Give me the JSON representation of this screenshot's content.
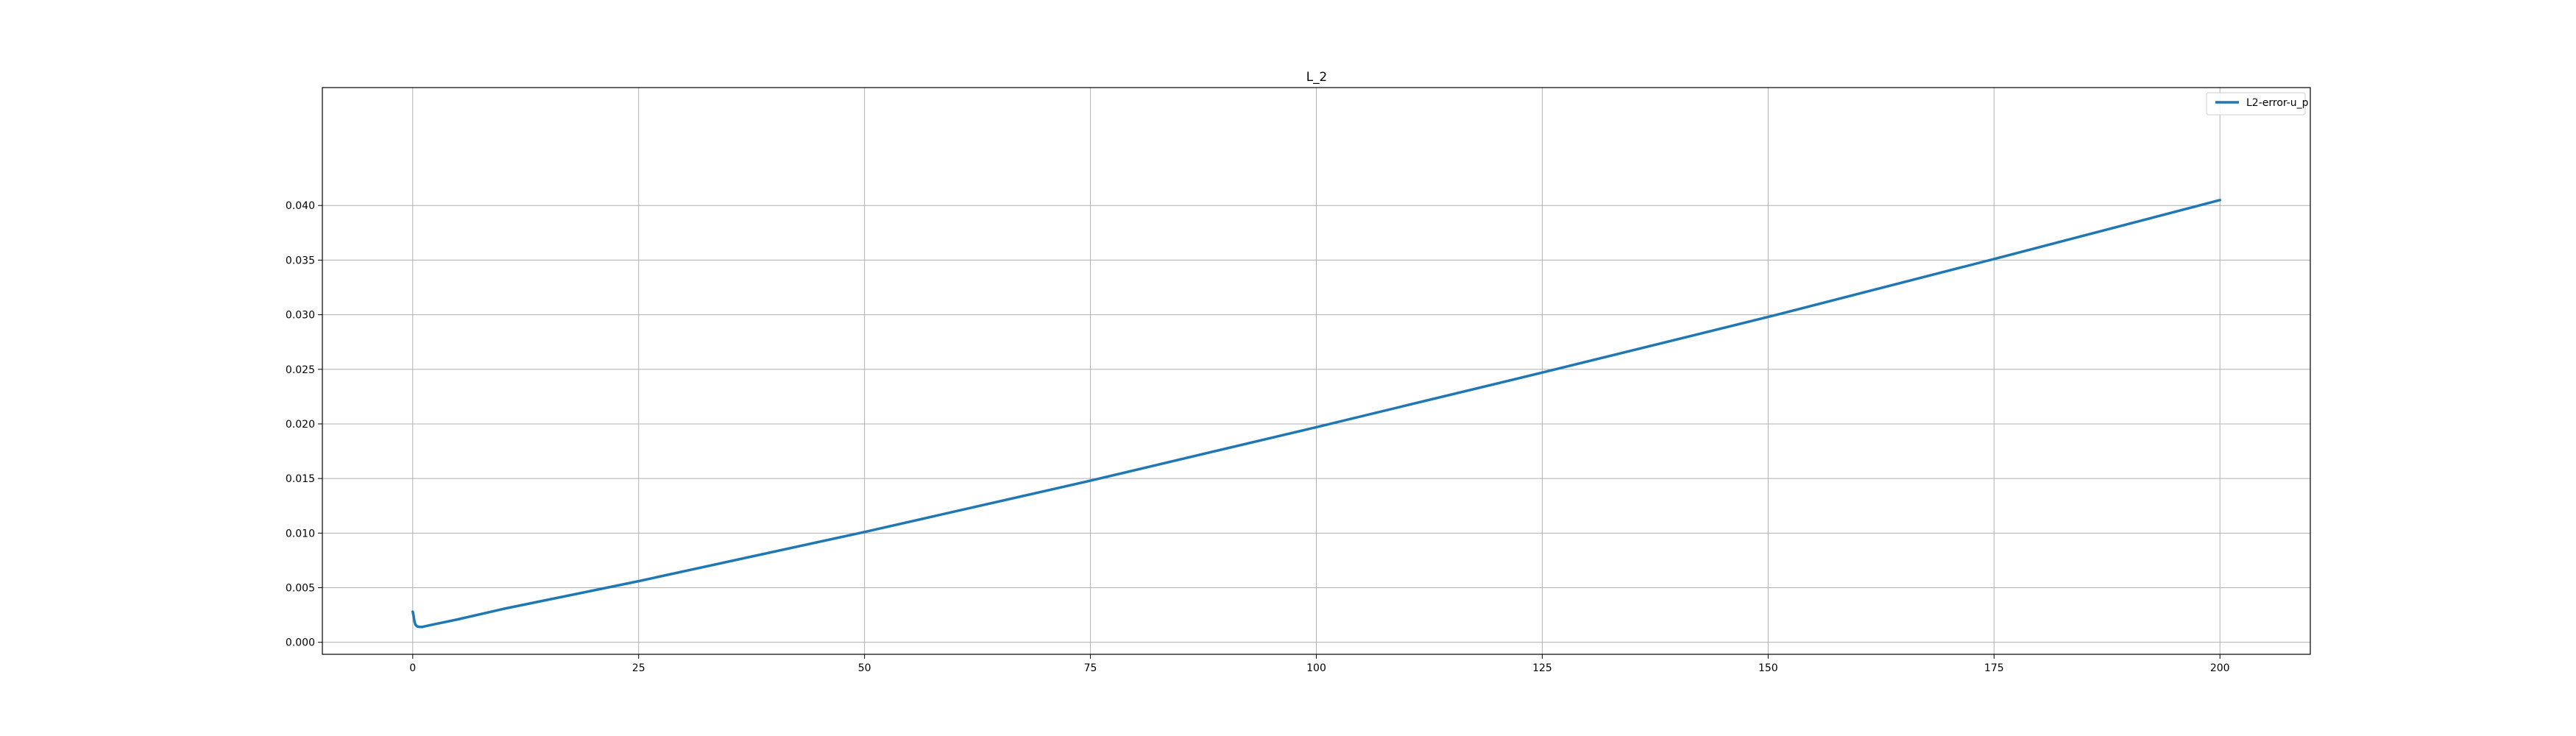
{
  "chart_data": {
    "type": "line",
    "title": "L_2",
    "xlabel": "",
    "ylabel": "",
    "xlim": [
      -10,
      210
    ],
    "ylim": [
      -0.0011,
      0.0508
    ],
    "xticks": [
      0,
      25,
      50,
      75,
      100,
      125,
      150,
      175,
      200
    ],
    "xtick_labels": [
      "0",
      "25",
      "50",
      "75",
      "100",
      "125",
      "150",
      "175",
      "200"
    ],
    "yticks": [
      0.0,
      0.005,
      0.01,
      0.015,
      0.02,
      0.025,
      0.03,
      0.035,
      0.04
    ],
    "ytick_labels": [
      "0.000",
      "0.005",
      "0.010",
      "0.015",
      "0.020",
      "0.025",
      "0.030",
      "0.035",
      "0.040"
    ],
    "grid": true,
    "legend_position": "top-right",
    "series": [
      {
        "name": "L2-error-u_p",
        "color": "#1f77b4",
        "x": [
          0,
          0.1,
          0.2,
          0.3,
          0.5,
          0.7,
          1,
          2,
          5,
          10,
          25,
          50,
          75,
          100,
          125,
          150,
          175,
          200
        ],
        "y": [
          0.0028,
          0.0024,
          0.0019,
          0.0016,
          0.00145,
          0.00142,
          0.0014,
          0.00158,
          0.0021,
          0.00305,
          0.0056,
          0.0101,
          0.0148,
          0.0197,
          0.0247,
          0.0298,
          0.0351,
          0.0405
        ]
      }
    ]
  }
}
